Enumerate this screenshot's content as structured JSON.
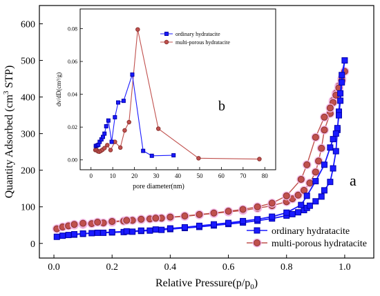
{
  "chart_data": [
    {
      "type": "scatter",
      "role": "main",
      "xlabel": "Relative Pressure(p/p",
      "xlabel_sub": "0",
      "xlabel_tail": ")",
      "ylabel": "Quantity Adsorbed (cm",
      "ylabel_sup": "3",
      "ylabel_tail": " STP)",
      "xlim": [
        -0.05,
        1.1
      ],
      "ylim": [
        -40,
        650
      ],
      "xticks": [
        0.0,
        0.2,
        0.4,
        0.6,
        0.8,
        1.0
      ],
      "xtick_labels": [
        "0.0",
        "0.2",
        "0.4",
        "0.6",
        "0.8",
        "1.0"
      ],
      "yticks": [
        0,
        100,
        200,
        300,
        400,
        500,
        600
      ],
      "ytick_labels": [
        "0",
        "100",
        "200",
        "300",
        "400",
        "500",
        "600"
      ],
      "annotation": "a",
      "legend_position": "bottom-right",
      "series": [
        {
          "name": "ordinary hydratacite",
          "color": "#1a1aff",
          "marker": "square",
          "x": [
            0.01,
            0.03,
            0.05,
            0.07,
            0.1,
            0.13,
            0.17,
            0.2,
            0.24,
            0.27,
            0.3,
            0.33,
            0.37,
            0.4,
            0.45,
            0.5,
            0.55,
            0.6,
            0.65,
            0.7,
            0.75,
            0.8,
            0.82,
            0.84,
            0.86,
            0.87,
            0.88,
            0.9,
            0.92,
            0.93,
            0.95,
            0.96,
            0.97,
            0.975,
            0.98,
            0.985,
            0.99,
            1.0,
            0.99,
            0.985,
            0.98,
            0.975,
            0.97,
            0.96,
            0.95,
            0.93,
            0.9,
            0.87,
            0.85,
            0.8,
            0.75,
            0.7,
            0.65,
            0.6,
            0.55,
            0.5,
            0.45,
            0.4,
            0.35,
            0.3,
            0.25,
            0.2,
            0.15,
            0.1,
            0.07
          ],
          "y": [
            18,
            21,
            23,
            24,
            26,
            28,
            29,
            30,
            31,
            32,
            34,
            35,
            37,
            39,
            42,
            45,
            49,
            53,
            57,
            62,
            68,
            76,
            80,
            85,
            91,
            97,
            103,
            115,
            128,
            145,
            168,
            205,
            252,
            310,
            360,
            410,
            460,
            500,
            440,
            390,
            350,
            315,
            300,
            285,
            262,
            215,
            170,
            130,
            105,
            84,
            73,
            66,
            61,
            56,
            52,
            48,
            44,
            41,
            38,
            35,
            33,
            31,
            29,
            27,
            25
          ]
        },
        {
          "name": "multi-porous hydratacite",
          "color": "#c0504d",
          "marker": "circle",
          "x": [
            0.01,
            0.03,
            0.05,
            0.07,
            0.1,
            0.13,
            0.17,
            0.2,
            0.24,
            0.27,
            0.3,
            0.33,
            0.37,
            0.4,
            0.45,
            0.5,
            0.55,
            0.6,
            0.65,
            0.7,
            0.75,
            0.8,
            0.82,
            0.84,
            0.86,
            0.88,
            0.9,
            0.91,
            0.92,
            0.93,
            0.95,
            0.96,
            0.97,
            0.98,
            0.99,
            1.0,
            0.99,
            0.98,
            0.97,
            0.96,
            0.95,
            0.93,
            0.9,
            0.87,
            0.85,
            0.8,
            0.75,
            0.7,
            0.65,
            0.6,
            0.55,
            0.5,
            0.45,
            0.4,
            0.35,
            0.3,
            0.25,
            0.2,
            0.15,
            0.1,
            0.07
          ],
          "y": [
            40,
            45,
            48,
            50,
            52,
            54,
            56,
            58,
            61,
            63,
            65,
            67,
            69,
            71,
            74,
            78,
            82,
            86,
            90,
            96,
            103,
            114,
            122,
            132,
            145,
            165,
            195,
            225,
            260,
            310,
            355,
            390,
            410,
            430,
            450,
            470,
            445,
            425,
            405,
            385,
            370,
            345,
            290,
            215,
            175,
            130,
            110,
            100,
            93,
            88,
            83,
            79,
            75,
            72,
            69,
            66,
            63,
            60,
            58,
            55,
            52
          ]
        }
      ]
    },
    {
      "type": "line",
      "role": "inset",
      "annotation": "b",
      "xlabel": "pore diameter(nm)",
      "ylabel": "dv/dD(cm³/g)",
      "xlim": [
        -5,
        85
      ],
      "ylim": [
        -0.006,
        0.092
      ],
      "xticks": [
        0,
        10,
        20,
        30,
        40,
        50,
        60,
        70,
        80
      ],
      "xtick_labels": [
        "0",
        "10",
        "20",
        "30",
        "40",
        "50",
        "60",
        "70",
        "80"
      ],
      "yticks": [
        0.0,
        0.02,
        0.04,
        0.06,
        0.08
      ],
      "ytick_labels": [
        "0.00",
        "0.02",
        "0.04",
        "0.06",
        "0.08"
      ],
      "legend_position": "top-right",
      "series": [
        {
          "name": "ordinary hydratacite",
          "color": "#1a1aff",
          "marker": "square",
          "x": [
            2.2,
            2.8,
            3.4,
            4.0,
            4.8,
            5.5,
            6.2,
            7.0,
            8.0,
            9.5,
            11.0,
            12.5,
            15.0,
            19.0,
            24.0,
            28.0,
            38.0
          ],
          "y": [
            0.0085,
            0.0088,
            0.0092,
            0.011,
            0.0125,
            0.014,
            0.016,
            0.0205,
            0.024,
            0.011,
            0.026,
            0.035,
            0.036,
            0.052,
            0.0055,
            0.0025,
            0.0028
          ]
        },
        {
          "name": "multi-porous hydratacite",
          "color": "#c0504d",
          "marker": "circle",
          "x": [
            2.0,
            2.6,
            3.2,
            3.8,
            4.5,
            5.3,
            6.2,
            7.5,
            9.0,
            11.0,
            13.5,
            15.5,
            17.5,
            21.5,
            31.0,
            49.5,
            77.5
          ],
          "y": [
            0.006,
            0.006,
            0.0052,
            0.005,
            0.0055,
            0.0062,
            0.0072,
            0.009,
            0.006,
            0.011,
            0.0075,
            0.018,
            0.023,
            0.0795,
            0.019,
            0.001,
            0.0005
          ]
        }
      ]
    }
  ]
}
